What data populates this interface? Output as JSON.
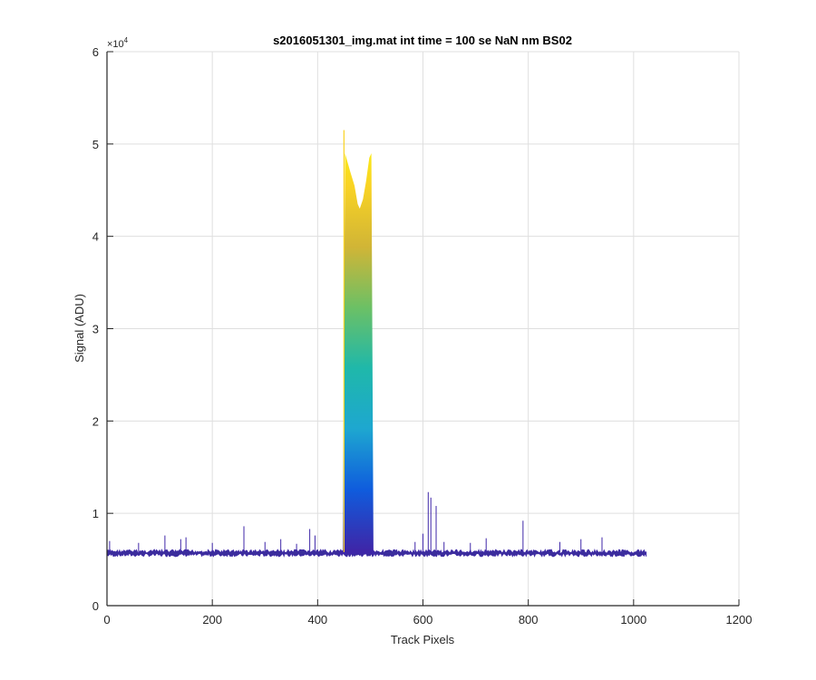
{
  "chart_data": {
    "type": "area",
    "title": "s2016051301_img.mat int time = 100 se  NaN nm BS02",
    "xlabel": "Track Pixels",
    "ylabel": "Signal (ADU)",
    "xlim": [
      0,
      1200
    ],
    "ylim": [
      0,
      60000
    ],
    "y_exponent_label": "×10",
    "y_exponent_power": "4",
    "x_tick_labels": [
      "0",
      "200",
      "400",
      "600",
      "800",
      "1000",
      "1200"
    ],
    "y_tick_labels": [
      "0",
      "1",
      "2",
      "3",
      "4",
      "5",
      "6"
    ],
    "grid": true,
    "colormap": [
      "#3e26a8",
      "#0f5cdd",
      "#1ea7d0",
      "#1fb8aa",
      "#6cc065",
      "#d1b536",
      "#f9d324",
      "#f9fb0e"
    ],
    "baseline": {
      "x_range": [
        0,
        1024
      ],
      "min": 5300,
      "max": 6100
    },
    "profile": [
      [
        0,
        5800
      ],
      [
        440,
        5800
      ],
      [
        448,
        6000
      ],
      [
        452,
        49000
      ],
      [
        456,
        48200
      ],
      [
        462,
        47000
      ],
      [
        470,
        45500
      ],
      [
        476,
        43500
      ],
      [
        480,
        43000
      ],
      [
        486,
        44000
      ],
      [
        492,
        46000
      ],
      [
        498,
        48500
      ],
      [
        502,
        49000
      ],
      [
        506,
        6000
      ],
      [
        510,
        5800
      ],
      [
        1024,
        5600
      ]
    ],
    "spikes": [
      [
        5,
        7000
      ],
      [
        60,
        6800
      ],
      [
        110,
        7600
      ],
      [
        140,
        7200
      ],
      [
        150,
        7400
      ],
      [
        200,
        6800
      ],
      [
        260,
        8600
      ],
      [
        300,
        6900
      ],
      [
        330,
        7200
      ],
      [
        360,
        6700
      ],
      [
        385,
        8300
      ],
      [
        395,
        7600
      ],
      [
        450,
        51500
      ],
      [
        585,
        6900
      ],
      [
        600,
        7800
      ],
      [
        610,
        12300
      ],
      [
        615,
        11700
      ],
      [
        625,
        10800
      ],
      [
        640,
        6900
      ],
      [
        690,
        6800
      ],
      [
        720,
        7300
      ],
      [
        790,
        9200
      ],
      [
        860,
        6900
      ],
      [
        900,
        7200
      ],
      [
        940,
        7400
      ]
    ]
  }
}
